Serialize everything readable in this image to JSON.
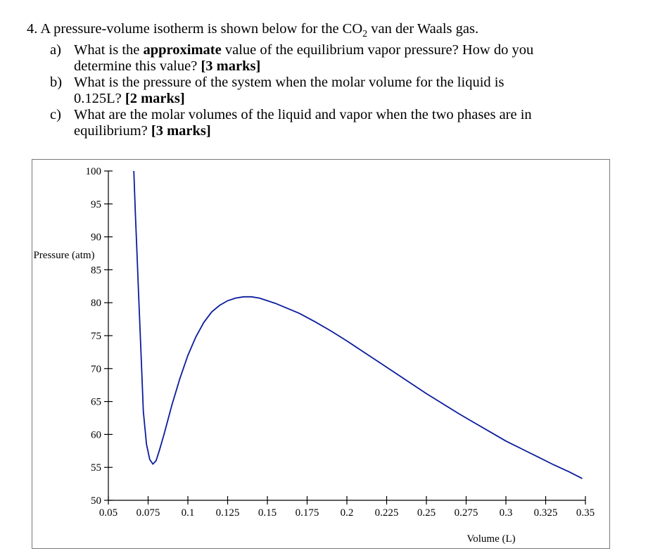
{
  "question": {
    "number": "4.",
    "intro": "A pressure-volume isotherm is shown below for the CO",
    "intro_sub": "2",
    "intro_end": " van der Waals gas.",
    "parts": [
      {
        "label": "a)",
        "line1_pre": "What is the ",
        "line1_bold": "approximate",
        "line1_post": " value of the equilibrium vapor pressure? How do you",
        "line2_pre": "determine this value? ",
        "line2_bold": "[3 marks]"
      },
      {
        "label": "b)",
        "line1": "What is the pressure of the system when the molar volume for the liquid is",
        "line2_pre": "0.125L? ",
        "line2_bold": "[2 marks]"
      },
      {
        "label": "c)",
        "line1": "What are the molar volumes of the liquid and vapor when the two phases are in",
        "line2_pre": "equilibrium? ",
        "line2_bold": "[3 marks]"
      }
    ]
  },
  "chart_data": {
    "type": "line",
    "xlabel": "Volume (L)",
    "ylabel": "Pressure (atm)",
    "xlim": [
      0.05,
      0.35
    ],
    "ylim": [
      50,
      100
    ],
    "x_ticks": [
      "0.05",
      "0.075",
      "0.1",
      "0.125",
      "0.15",
      "0.175",
      "0.2",
      "0.225",
      "0.25",
      "0.275",
      "0.3",
      "0.325",
      "0.35"
    ],
    "y_ticks": [
      "50",
      "55",
      "60",
      "65",
      "70",
      "75",
      "80",
      "85",
      "90",
      "95",
      "100"
    ],
    "grid": false,
    "color": "#0b1c9c",
    "series": [
      {
        "x": [
          0.066,
          0.067,
          0.068,
          0.069,
          0.07,
          0.071,
          0.072,
          0.074,
          0.076,
          0.078,
          0.08,
          0.082,
          0.085,
          0.09,
          0.095,
          0.1,
          0.105,
          0.11,
          0.115,
          0.12,
          0.125,
          0.13,
          0.135,
          0.14,
          0.145,
          0.15,
          0.155,
          0.16,
          0.17,
          0.18,
          0.19,
          0.2,
          0.21,
          0.22,
          0.23,
          0.24,
          0.25,
          0.26,
          0.27,
          0.28,
          0.29,
          0.3,
          0.31,
          0.32,
          0.33,
          0.34,
          0.348
        ],
        "y": [
          100,
          93.5,
          87.5,
          81.5,
          75.5,
          69.5,
          63.5,
          58.5,
          56.2,
          55.5,
          56.0,
          57.5,
          60.0,
          64.5,
          68.5,
          72.0,
          74.8,
          77.0,
          78.6,
          79.6,
          80.3,
          80.7,
          80.9,
          80.9,
          80.7,
          80.3,
          79.9,
          79.4,
          78.4,
          77.1,
          75.7,
          74.2,
          72.6,
          71.0,
          69.4,
          67.8,
          66.2,
          64.7,
          63.2,
          61.8,
          60.4,
          59.0,
          57.8,
          56.6,
          55.4,
          54.3,
          53.3
        ]
      }
    ]
  }
}
